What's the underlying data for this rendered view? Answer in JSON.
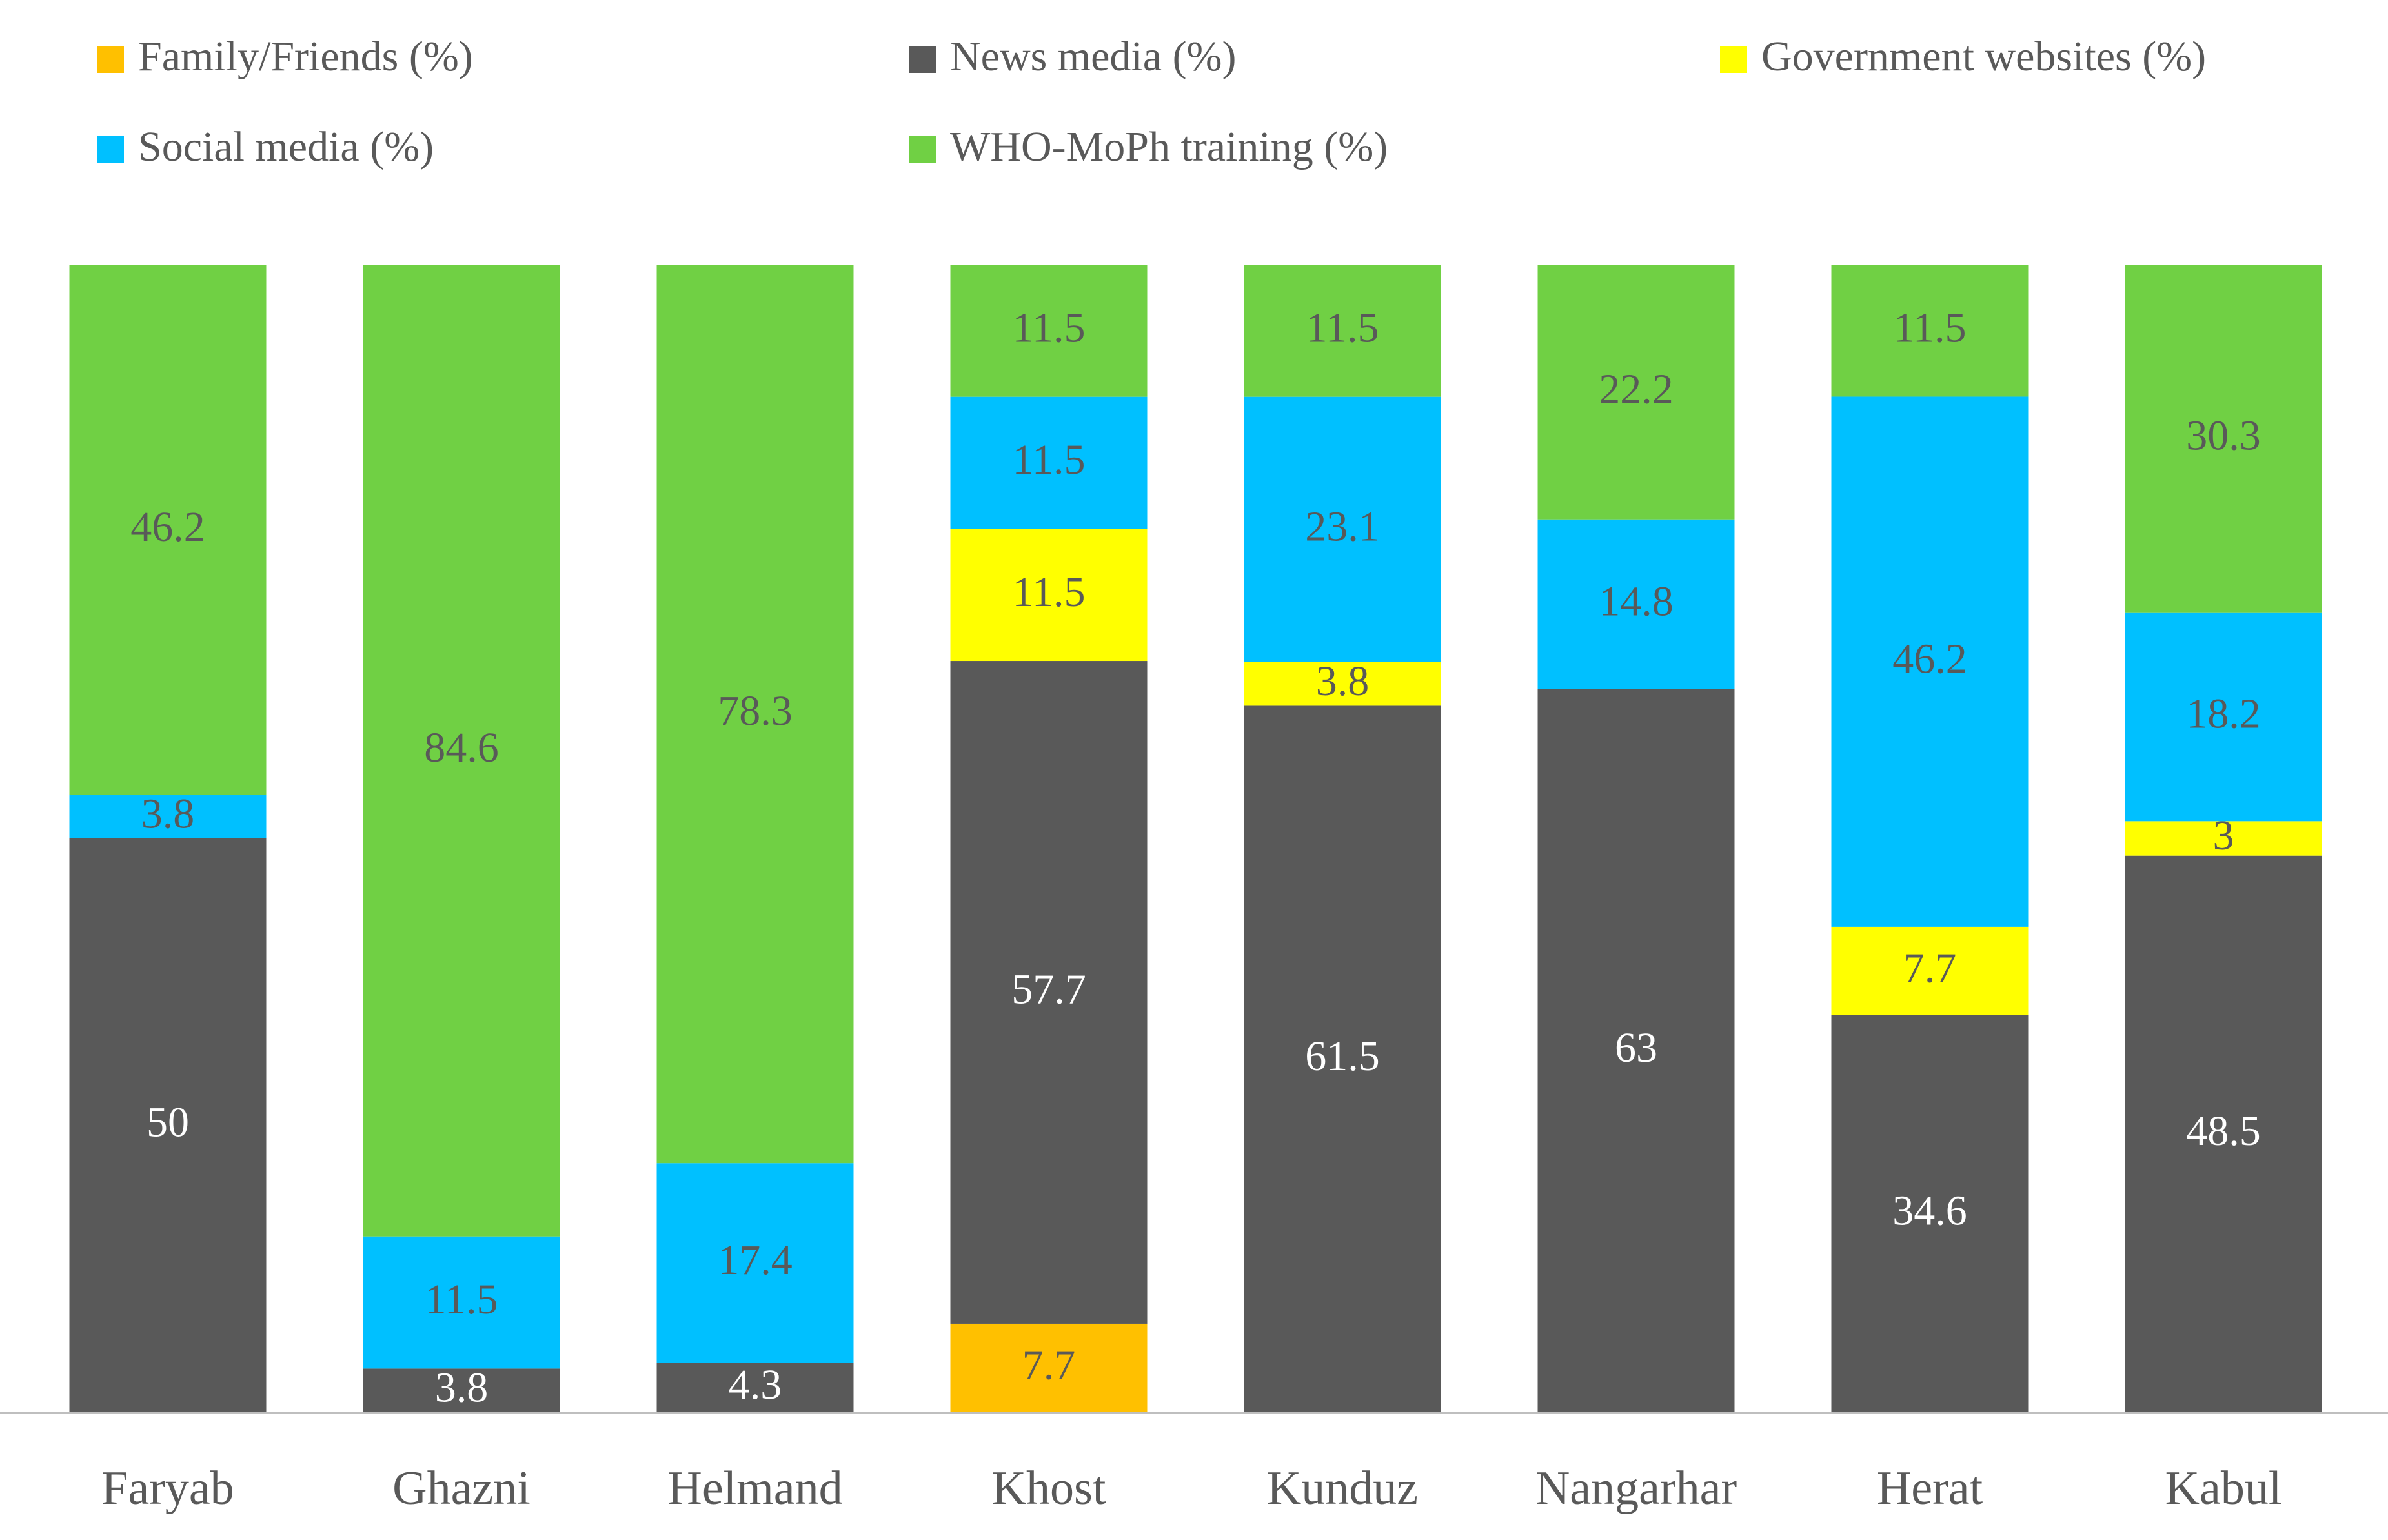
{
  "chart_data": {
    "type": "bar",
    "stacked": true,
    "normalized_percent": true,
    "title": "",
    "xlabel": "",
    "ylabel": "",
    "ylim": [
      0,
      100
    ],
    "grid": false,
    "legend_position": "top",
    "categories": [
      "Faryab",
      "Ghazni",
      "Helmand",
      "Khost",
      "Kunduz",
      "Nangarhar",
      "Herat",
      "Kabul"
    ],
    "series": [
      {
        "name": "Family/Friends (%)",
        "color": "#FFC000",
        "label_color": "#595959",
        "values": [
          null,
          null,
          null,
          7.7,
          null,
          null,
          null,
          null
        ]
      },
      {
        "name": "News media (%)",
        "color": "#595959",
        "label_color": "#FFFFFF",
        "values": [
          50,
          3.8,
          4.3,
          57.7,
          61.5,
          63,
          34.6,
          48.5
        ]
      },
      {
        "name": "Government websites (%)",
        "color": "#FFFF00",
        "label_color": "#595959",
        "values": [
          null,
          null,
          null,
          11.5,
          3.8,
          null,
          7.7,
          3
        ]
      },
      {
        "name": "Social media (%)",
        "color": "#00C0FF",
        "label_color": "#595959",
        "values": [
          3.8,
          11.5,
          17.4,
          11.5,
          23.1,
          14.8,
          46.2,
          18.2
        ]
      },
      {
        "name": "WHO-MoPh training (%)",
        "color": "#70D044",
        "label_color": "#595959",
        "values": [
          46.2,
          84.6,
          78.3,
          11.5,
          11.5,
          22.2,
          11.5,
          30.3
        ]
      }
    ],
    "legend_order": [
      "Family/Friends (%)",
      "News media (%)",
      "Government websites (%)",
      "Social media (%)",
      "WHO-MoPh training (%)"
    ],
    "axis_color": "#BFBFBF"
  }
}
